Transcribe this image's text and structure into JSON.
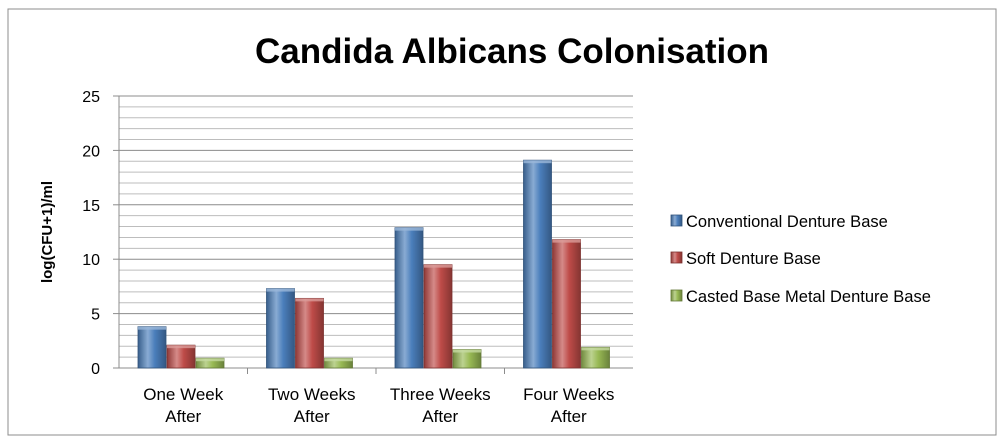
{
  "chart_data": {
    "type": "bar",
    "title": "Candida Albicans Colonisation",
    "xlabel": "",
    "ylabel": "log(CFU+1)/ml",
    "ylim": [
      0,
      25
    ],
    "yticks": [
      0,
      5,
      10,
      15,
      20,
      25
    ],
    "minor_step": 1,
    "grid": true,
    "legend_position": "right",
    "categories": [
      [
        "One Week",
        "After"
      ],
      [
        "Two Weeks",
        "After"
      ],
      [
        "Three Weeks",
        "After"
      ],
      [
        "Four Weeks",
        "After"
      ]
    ],
    "series": [
      {
        "name": "Conventional Denture Base",
        "color": "#4a7ebb",
        "values": [
          3.8,
          7.3,
          12.9,
          19.1
        ]
      },
      {
        "name": "Soft Denture Base",
        "color": "#be4b48",
        "values": [
          2.1,
          6.4,
          9.5,
          11.8
        ]
      },
      {
        "name": "Casted Base Metal Denture Base",
        "color": "#98b954",
        "values": [
          0.9,
          0.9,
          1.7,
          1.9
        ]
      }
    ]
  }
}
